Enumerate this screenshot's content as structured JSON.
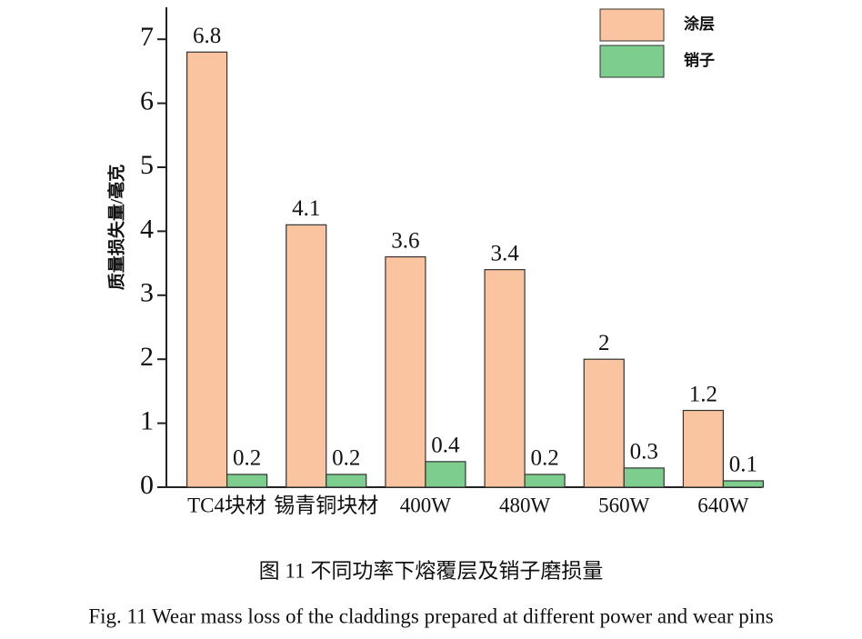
{
  "chart_data": {
    "type": "bar",
    "y_label": "质量损失量/毫克",
    "caption": "图 11 不同功率下熔覆层及销子磨损量",
    "caption_en": "Fig. 11 Wear mass loss of the claddings prepared at different power and wear pins",
    "categories": [
      "TC4块材",
      "锡青铜块材",
      "400W",
      "480W",
      "560W",
      "640W"
    ],
    "series": [
      {
        "name": "涂层",
        "color": "#f9c49f",
        "values": [
          6.8,
          4.1,
          3.6,
          3.4,
          2,
          1.2
        ]
      },
      {
        "name": "销子",
        "color": "#7ccd8e",
        "values": [
          0.2,
          0.2,
          0.4,
          0.2,
          0.3,
          0.1
        ]
      }
    ],
    "ylim": [
      0,
      7.5
    ],
    "yticks": [
      0,
      1,
      2,
      3,
      4,
      5,
      6,
      7
    ],
    "legend": "upper right",
    "grid": false
  }
}
